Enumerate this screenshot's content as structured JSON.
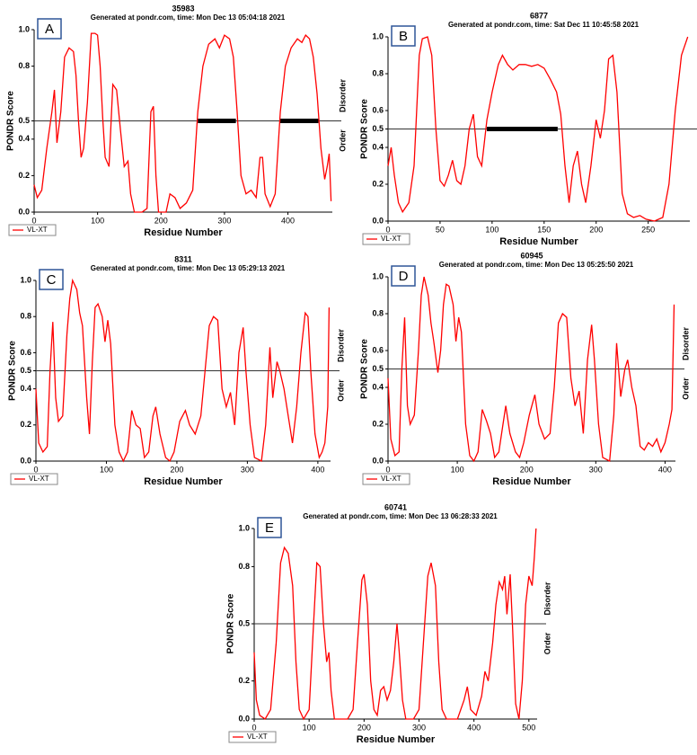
{
  "chart_data": [
    {
      "type": "line",
      "panel_label": "A",
      "title": "35983",
      "subtitle": "Generated at pondr.com, time: Mon Dec 13 05:04:18 2021",
      "x_label": "Residue Number",
      "y_label": "PONDR Score",
      "upper_label": "Disorder",
      "lower_label": "Order",
      "xlim": [
        0,
        470
      ],
      "ylim": [
        0,
        1
      ],
      "xticks": [
        0,
        100,
        200,
        300,
        400
      ],
      "yticks": [
        {
          "value": 0,
          "label": "0.0"
        },
        0.2,
        0.4,
        0.5,
        0.8,
        {
          "value": 1,
          "label": "1.0"
        }
      ],
      "threshold": 0.5,
      "segments": [
        {
          "x": [
            258,
            318
          ],
          "y": 0.5
        },
        {
          "x": [
            388,
            448
          ],
          "y": 0.5
        }
      ],
      "series": [
        {
          "name": "VL-XT",
          "color": "#ff0000",
          "x": [
            0,
            5,
            12,
            20,
            28,
            32,
            36,
            42,
            48,
            55,
            62,
            66,
            70,
            74,
            78,
            84,
            90,
            96,
            100,
            104,
            108,
            112,
            118,
            124,
            130,
            136,
            142,
            148,
            152,
            158,
            170,
            178,
            184,
            188,
            192,
            196,
            208,
            214,
            222,
            230,
            240,
            250,
            258,
            266,
            275,
            285,
            292,
            300,
            308,
            314,
            320,
            326,
            334,
            342,
            350,
            356,
            360,
            364,
            372,
            380,
            388,
            396,
            405,
            415,
            422,
            428,
            434,
            440,
            446,
            452,
            458,
            462,
            465,
            468
          ],
          "values": [
            0.15,
            0.08,
            0.12,
            0.35,
            0.55,
            0.67,
            0.38,
            0.55,
            0.85,
            0.9,
            0.88,
            0.75,
            0.5,
            0.3,
            0.35,
            0.6,
            0.98,
            0.98,
            0.97,
            0.8,
            0.52,
            0.3,
            0.25,
            0.7,
            0.67,
            0.45,
            0.25,
            0.28,
            0.1,
            0,
            0,
            0.02,
            0.55,
            0.58,
            0.2,
            0,
            0,
            0.1,
            0.08,
            0.02,
            0.05,
            0.12,
            0.55,
            0.8,
            0.92,
            0.95,
            0.9,
            0.97,
            0.95,
            0.85,
            0.55,
            0.2,
            0.1,
            0.12,
            0.08,
            0.3,
            0.3,
            0.1,
            0.03,
            0.1,
            0.55,
            0.8,
            0.9,
            0.95,
            0.93,
            0.97,
            0.95,
            0.85,
            0.65,
            0.35,
            0.18,
            0.25,
            0.32,
            0.06
          ]
        }
      ]
    },
    {
      "type": "line",
      "panel_label": "B",
      "title": "6877",
      "subtitle": "Generated at pondr.com, time: Sat Dec 11 10:45:58 2021",
      "x_label": "Residue Number",
      "y_label": "PONDR Score",
      "upper_label": "Disorder",
      "lower_label": "Order",
      "xlim": [
        0,
        290
      ],
      "ylim": [
        0,
        1
      ],
      "xticks": [
        0,
        50,
        100,
        150,
        200,
        250
      ],
      "yticks": [
        {
          "value": 0,
          "label": "0.0"
        },
        0.2,
        0.4,
        0.5,
        0.6,
        0.8,
        {
          "value": 1,
          "label": "1.0"
        }
      ],
      "threshold": 0.5,
      "segments": [
        {
          "x": [
            95,
            163
          ],
          "y": 0.5
        }
      ],
      "series": [
        {
          "name": "VL-XT",
          "color": "#ff0000",
          "x": [
            0,
            3,
            6,
            10,
            14,
            20,
            25,
            30,
            33,
            38,
            42,
            46,
            50,
            54,
            58,
            62,
            66,
            70,
            74,
            78,
            82,
            86,
            90,
            95,
            100,
            106,
            110,
            115,
            120,
            126,
            132,
            138,
            144,
            150,
            156,
            162,
            166,
            170,
            174,
            178,
            182,
            186,
            190,
            195,
            200,
            204,
            208,
            212,
            216,
            220,
            225,
            230,
            236,
            242,
            248,
            256,
            264,
            270,
            276,
            282,
            288
          ],
          "values": [
            0.3,
            0.4,
            0.25,
            0.1,
            0.05,
            0.1,
            0.3,
            0.9,
            0.99,
            1,
            0.9,
            0.5,
            0.22,
            0.19,
            0.25,
            0.33,
            0.22,
            0.2,
            0.3,
            0.5,
            0.58,
            0.35,
            0.3,
            0.55,
            0.7,
            0.85,
            0.9,
            0.85,
            0.82,
            0.85,
            0.85,
            0.84,
            0.85,
            0.83,
            0.77,
            0.7,
            0.58,
            0.3,
            0.1,
            0.3,
            0.38,
            0.2,
            0.1,
            0.3,
            0.55,
            0.45,
            0.6,
            0.88,
            0.9,
            0.7,
            0.15,
            0.04,
            0.02,
            0.03,
            0.01,
            0,
            0.02,
            0.2,
            0.6,
            0.9,
            1
          ]
        }
      ]
    },
    {
      "type": "line",
      "panel_label": "C",
      "title": "8311",
      "subtitle": "Generated at pondr.com, time: Mon Dec 13 05:29:13 2021",
      "x_label": "Residue Number",
      "y_label": "PONDR Score",
      "upper_label": "Disorder",
      "lower_label": "Order",
      "xlim": [
        0,
        418
      ],
      "ylim": [
        0,
        1
      ],
      "xticks": [
        0,
        100,
        200,
        300,
        400
      ],
      "yticks": [
        {
          "value": 0,
          "label": "0.0"
        },
        0.2,
        0.4,
        0.5,
        0.6,
        0.8,
        {
          "value": 1,
          "label": "1.0"
        }
      ],
      "threshold": 0.5,
      "series": [
        {
          "name": "VL-XT",
          "color": "#ff0000",
          "x": [
            0,
            4,
            10,
            16,
            20,
            24,
            28,
            32,
            38,
            44,
            48,
            52,
            58,
            62,
            66,
            72,
            76,
            80,
            84,
            88,
            94,
            98,
            102,
            106,
            112,
            118,
            124,
            130,
            136,
            142,
            148,
            154,
            160,
            166,
            170,
            176,
            184,
            190,
            196,
            204,
            212,
            218,
            226,
            234,
            240,
            246,
            252,
            258,
            264,
            270,
            276,
            282,
            288,
            294,
            298,
            304,
            310,
            320,
            326,
            332,
            336,
            342,
            346,
            352,
            358,
            364,
            370,
            376,
            382,
            386,
            390,
            396,
            402,
            406,
            410,
            414,
            416
          ],
          "values": [
            0.4,
            0.1,
            0.05,
            0.08,
            0.5,
            0.77,
            0.35,
            0.22,
            0.25,
            0.7,
            0.9,
            1,
            0.95,
            0.82,
            0.75,
            0.35,
            0.15,
            0.55,
            0.85,
            0.87,
            0.8,
            0.66,
            0.78,
            0.65,
            0.2,
            0.05,
            0,
            0.05,
            0.28,
            0.2,
            0.18,
            0.02,
            0.05,
            0.25,
            0.3,
            0.15,
            0.02,
            0,
            0.05,
            0.22,
            0.28,
            0.2,
            0.15,
            0.25,
            0.5,
            0.75,
            0.8,
            0.78,
            0.4,
            0.3,
            0.38,
            0.2,
            0.6,
            0.74,
            0.5,
            0.2,
            0.02,
            0,
            0.2,
            0.63,
            0.35,
            0.55,
            0.5,
            0.4,
            0.25,
            0.1,
            0.3,
            0.6,
            0.82,
            0.8,
            0.5,
            0.15,
            0.02,
            0.05,
            0.1,
            0.3,
            0.85
          ]
        }
      ]
    },
    {
      "type": "line",
      "panel_label": "D",
      "title": "60945",
      "subtitle": "Generated at pondr.com, time: Mon Dec 13 05:25:50 2021",
      "x_label": "Residue Number",
      "y_label": "PONDR Score",
      "upper_label": "Disorder",
      "lower_label": "Order",
      "xlim": [
        0,
        415
      ],
      "ylim": [
        0,
        1
      ],
      "xticks": [
        0,
        100,
        200,
        300,
        400
      ],
      "yticks": [
        {
          "value": 0,
          "label": "0.0"
        },
        0.2,
        0.4,
        0.5,
        0.6,
        0.8,
        {
          "value": 1,
          "label": "1.0"
        }
      ],
      "threshold": 0.5,
      "series": [
        {
          "name": "VL-XT",
          "color": "#ff0000",
          "x": [
            0,
            4,
            10,
            16,
            20,
            24,
            28,
            32,
            38,
            44,
            48,
            52,
            58,
            62,
            66,
            72,
            76,
            80,
            84,
            88,
            94,
            98,
            102,
            106,
            112,
            118,
            124,
            130,
            136,
            142,
            148,
            154,
            160,
            166,
            170,
            176,
            184,
            190,
            196,
            204,
            212,
            218,
            226,
            234,
            240,
            246,
            252,
            258,
            264,
            270,
            276,
            282,
            288,
            294,
            298,
            304,
            310,
            320,
            326,
            330,
            336,
            342,
            346,
            352,
            358,
            364,
            370,
            376,
            382,
            388,
            394,
            400,
            406,
            410,
            413
          ],
          "values": [
            0.45,
            0.12,
            0.03,
            0.05,
            0.5,
            0.78,
            0.3,
            0.2,
            0.25,
            0.6,
            0.9,
            1,
            0.9,
            0.75,
            0.65,
            0.48,
            0.6,
            0.85,
            0.96,
            0.95,
            0.85,
            0.65,
            0.78,
            0.7,
            0.2,
            0.03,
            0,
            0.05,
            0.28,
            0.22,
            0.15,
            0.02,
            0.05,
            0.2,
            0.3,
            0.15,
            0.05,
            0.02,
            0.1,
            0.25,
            0.36,
            0.2,
            0.12,
            0.15,
            0.4,
            0.75,
            0.8,
            0.78,
            0.45,
            0.3,
            0.38,
            0.15,
            0.55,
            0.74,
            0.55,
            0.2,
            0.02,
            0,
            0.25,
            0.64,
            0.35,
            0.5,
            0.55,
            0.4,
            0.3,
            0.08,
            0.06,
            0.1,
            0.08,
            0.12,
            0.05,
            0.1,
            0.2,
            0.28,
            0.85
          ]
        }
      ]
    },
    {
      "type": "line",
      "panel_label": "E",
      "title": "60741",
      "subtitle": "Generated at pondr.com, time: Mon Dec 13 06:28:33 2021",
      "x_label": "Residue Number",
      "y_label": "PONDR Score",
      "upper_label": "Disorder",
      "lower_label": "Order",
      "xlim": [
        0,
        515
      ],
      "ylim": [
        0,
        1
      ],
      "xticks": [
        0,
        100,
        200,
        300,
        400,
        500
      ],
      "yticks": [
        {
          "value": 0,
          "label": "0.0"
        },
        0.2,
        0.5,
        0.8,
        {
          "value": 1,
          "label": "1.0"
        }
      ],
      "threshold": 0.5,
      "series": [
        {
          "name": "VL-XT",
          "color": "#ff0000",
          "x": [
            0,
            4,
            10,
            20,
            30,
            40,
            48,
            55,
            62,
            70,
            76,
            82,
            90,
            100,
            108,
            114,
            120,
            126,
            132,
            136,
            140,
            146,
            160,
            170,
            180,
            188,
            196,
            200,
            206,
            212,
            218,
            224,
            230,
            236,
            242,
            248,
            254,
            260,
            264,
            270,
            276,
            290,
            300,
            308,
            316,
            322,
            330,
            336,
            342,
            350,
            370,
            382,
            388,
            394,
            404,
            414,
            420,
            426,
            434,
            440,
            446,
            452,
            456,
            460,
            466,
            470,
            476,
            482,
            488,
            494,
            500,
            506,
            510,
            513
          ],
          "values": [
            0.35,
            0.1,
            0.02,
            0,
            0.05,
            0.4,
            0.82,
            0.9,
            0.87,
            0.7,
            0.3,
            0.05,
            0,
            0.05,
            0.5,
            0.82,
            0.8,
            0.5,
            0.3,
            0.35,
            0.15,
            0,
            0,
            0,
            0.05,
            0.4,
            0.73,
            0.76,
            0.6,
            0.2,
            0.05,
            0.02,
            0.15,
            0.17,
            0.1,
            0.15,
            0.3,
            0.5,
            0.35,
            0.1,
            0,
            0,
            0.05,
            0.4,
            0.75,
            0.82,
            0.7,
            0.3,
            0.05,
            0,
            0,
            0.1,
            0.17,
            0.05,
            0.02,
            0.12,
            0.25,
            0.2,
            0.4,
            0.6,
            0.72,
            0.68,
            0.75,
            0.55,
            0.76,
            0.5,
            0.08,
            0,
            0.2,
            0.6,
            0.75,
            0.7,
            0.85,
            1
          ]
        }
      ]
    }
  ]
}
